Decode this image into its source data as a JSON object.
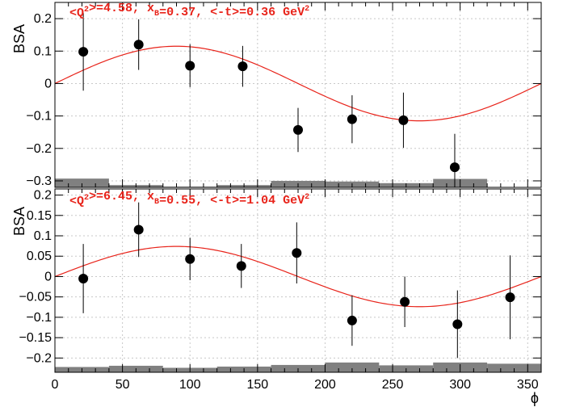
{
  "chart_data": [
    {
      "type": "scatter",
      "ylabel": "BSA",
      "xlabel": "",
      "annotation": {
        "parts": [
          {
            "t": "<Q"
          },
          {
            "t": "2",
            "sup": true
          },
          {
            "t": ">=4.58, x"
          },
          {
            "t": "B",
            "sub": true
          },
          {
            "t": "=0.37, <-t>=0.36 GeV"
          },
          {
            "t": "2",
            "sup": true
          }
        ],
        "color": "#e8231a"
      },
      "xlim": [
        0,
        360
      ],
      "ylim": [
        -0.32,
        0.25
      ],
      "yticks": [
        -0.3,
        -0.2,
        -0.1,
        0,
        0.1,
        0.2
      ],
      "ytick_labels": [
        "−0.3",
        "−0.2",
        "−0.1",
        "0",
        "0.1",
        "0.2"
      ],
      "grid": true,
      "series": [
        {
          "marker_color": "#000000",
          "x": [
            21,
            62,
            100,
            139,
            180,
            220,
            258,
            296
          ],
          "y": [
            0.098,
            0.12,
            0.055,
            0.053,
            -0.143,
            -0.11,
            -0.113,
            -0.258
          ],
          "err": [
            0.12,
            0.078,
            0.066,
            0.063,
            0.068,
            0.074,
            0.085,
            0.103
          ]
        }
      ],
      "fit": {
        "color": "#e8231a",
        "amplitude": 0.115,
        "function": "A*sin(phi)"
      },
      "systematics": {
        "color": "#808080",
        "edges": [
          0,
          40,
          80,
          120,
          160,
          200,
          240,
          280,
          320,
          360
        ],
        "tops": [
          -0.293,
          -0.313,
          -0.318,
          -0.313,
          -0.3,
          -0.302,
          -0.307,
          -0.294,
          null
        ]
      }
    },
    {
      "type": "scatter",
      "ylabel": "BSA",
      "xlabel": "ϕ",
      "annotation": {
        "parts": [
          {
            "t": "<Q"
          },
          {
            "t": "2",
            "sup": true
          },
          {
            "t": ">=6.45, x"
          },
          {
            "t": "B",
            "sub": true
          },
          {
            "t": "=0.55, <-t>=1.04 GeV"
          },
          {
            "t": "2",
            "sup": true
          }
        ],
        "color": "#e8231a"
      },
      "xlim": [
        0,
        360
      ],
      "ylim": [
        -0.235,
        0.215
      ],
      "yticks": [
        -0.2,
        -0.15,
        -0.1,
        -0.05,
        0,
        0.05,
        0.1,
        0.15,
        0.2
      ],
      "ytick_labels": [
        "−0.2",
        "−0.15",
        "−0.1",
        "−0.05",
        "0",
        "0.05",
        "0.1",
        "0.15",
        "0.2"
      ],
      "xticks": [
        0,
        50,
        100,
        150,
        200,
        250,
        300,
        350
      ],
      "xtick_labels": [
        "0",
        "50",
        "100",
        "150",
        "200",
        "250",
        "300",
        "350"
      ],
      "grid": true,
      "series": [
        {
          "marker_color": "#000000",
          "x": [
            21,
            62,
            100,
            138,
            179,
            220,
            259,
            298,
            337
          ],
          "y": [
            -0.005,
            0.115,
            0.043,
            0.026,
            0.058,
            -0.108,
            -0.062,
            -0.117,
            -0.051
          ],
          "err": [
            0.085,
            0.067,
            0.052,
            0.054,
            0.075,
            0.062,
            0.062,
            0.083,
            0.103
          ]
        }
      ],
      "fit": {
        "color": "#e8231a",
        "amplitude": 0.074,
        "function": "A*sin(phi)"
      },
      "systematics": {
        "color": "#808080",
        "edges": [
          0,
          40,
          80,
          120,
          160,
          200,
          240,
          280,
          320,
          360
        ],
        "tops": [
          -0.222,
          -0.219,
          -0.224,
          -0.221,
          -0.217,
          -0.211,
          -0.218,
          -0.211,
          -0.214
        ]
      }
    }
  ]
}
